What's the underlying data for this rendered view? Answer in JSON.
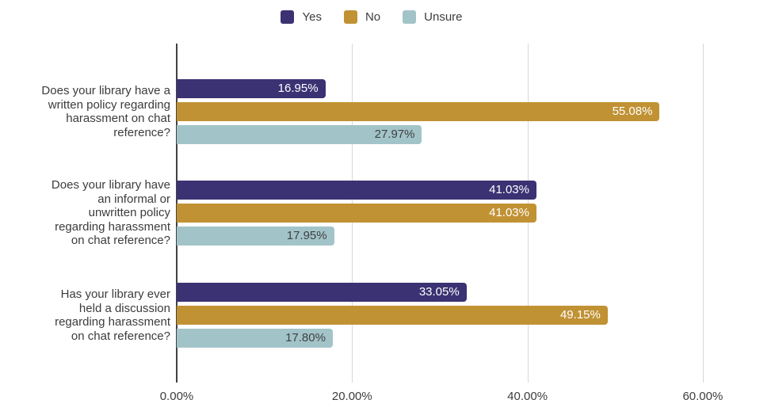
{
  "chart_data": {
    "type": "bar",
    "orientation": "horizontal",
    "title": "",
    "grid": true,
    "legend": {
      "position": "top",
      "entries": [
        "Yes",
        "No",
        "Unsure"
      ]
    },
    "categories": [
      {
        "lines": [
          "Does your library have a",
          "written policy regarding",
          "harassment on chat",
          "reference?"
        ]
      },
      {
        "lines": [
          "Does your library have",
          "an informal or",
          "unwritten policy",
          "regarding harassment",
          "on chat reference?"
        ]
      },
      {
        "lines": [
          "Has your library ever",
          "held a discussion",
          "regarding harassment",
          "on chat reference?"
        ]
      }
    ],
    "series": [
      {
        "name": "Yes",
        "color": "#3b3273",
        "label_color": "#ffffff",
        "values": [
          16.95,
          41.03,
          33.05
        ],
        "labels": [
          "16.95%",
          "41.03%",
          "33.05%"
        ]
      },
      {
        "name": "No",
        "color": "#c19234",
        "label_color": "#ffffff",
        "values": [
          55.08,
          41.03,
          49.15
        ],
        "labels": [
          "55.08%",
          "41.03%",
          "49.15%"
        ]
      },
      {
        "name": "Unsure",
        "color": "#a2c4c9",
        "label_color": "#404040",
        "values": [
          27.97,
          17.95,
          17.8
        ],
        "labels": [
          "27.97%",
          "17.95%",
          "17.80%"
        ]
      }
    ],
    "x_axis": {
      "ticks": [
        {
          "label": "0.00%",
          "value": 0
        },
        {
          "label": "20.00%",
          "value": 20
        },
        {
          "label": "40.00%",
          "value": 40
        },
        {
          "label": "60.00%",
          "value": 60
        }
      ],
      "range": [
        0,
        65
      ],
      "format": "percent"
    },
    "colors": {
      "axis_line": "#424242",
      "grid_line": "#d8d8d8",
      "text": "#3c3c3c",
      "background": "#ffffff"
    }
  }
}
